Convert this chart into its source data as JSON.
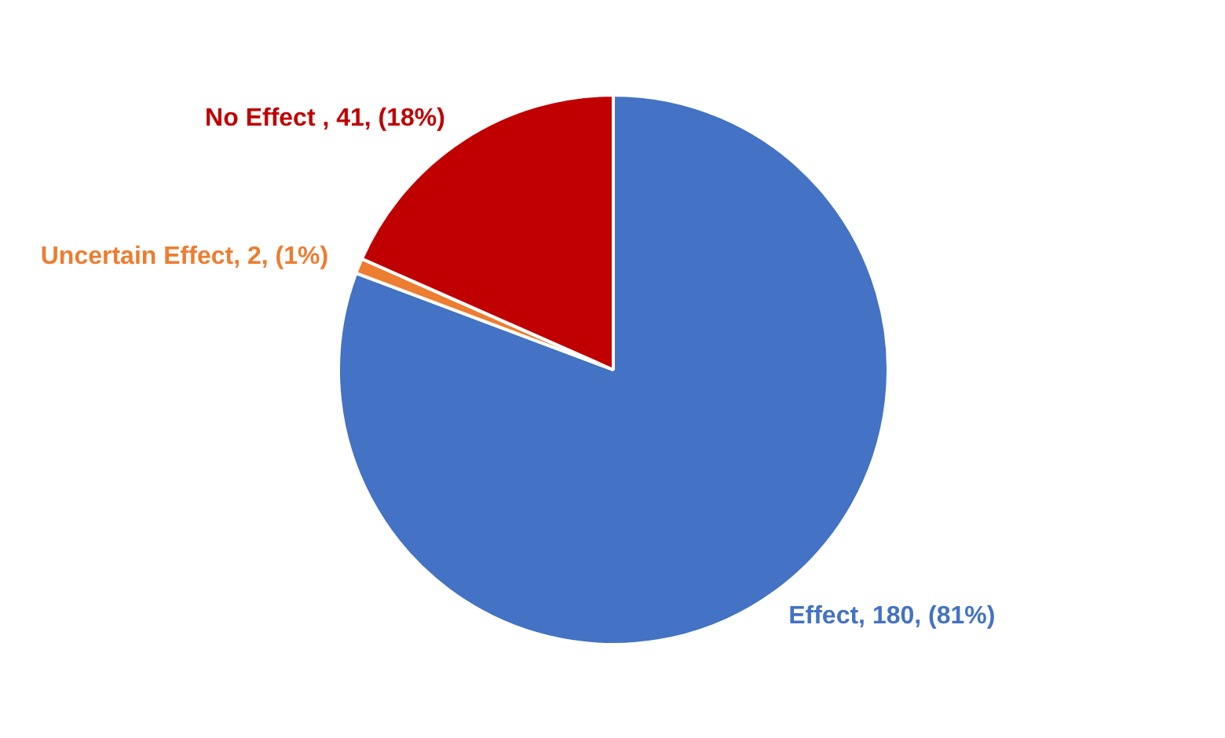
{
  "chart_data": {
    "type": "pie",
    "categories": [
      "Effect",
      "Uncertain Effect",
      "No Effect "
    ],
    "values": [
      180,
      2,
      41
    ],
    "colors": [
      "#4472c4",
      "#ed7d31",
      "#c00000"
    ],
    "value_labels": [
      "180, (81%)",
      "2, (1%)",
      "41, (18%)"
    ]
  }
}
